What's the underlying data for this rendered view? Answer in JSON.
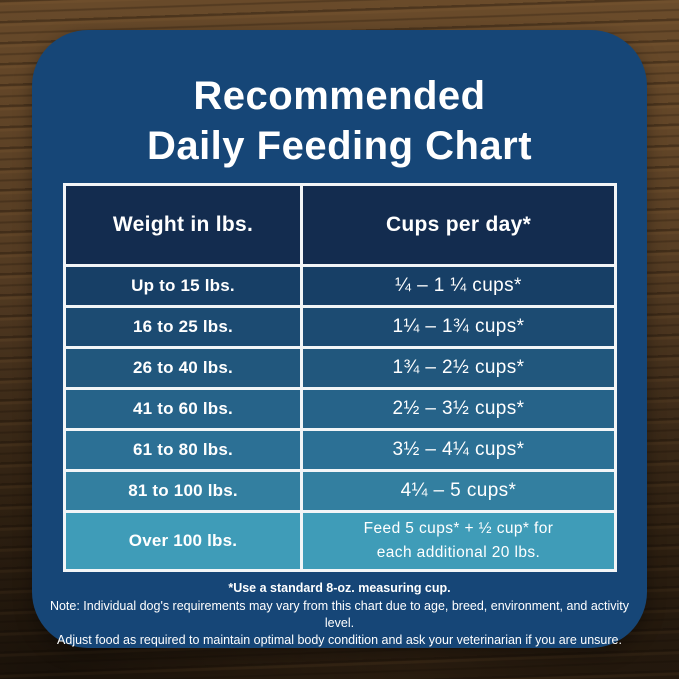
{
  "title": {
    "line1": "Recommended",
    "line2": "Daily Feeding Chart"
  },
  "colors": {
    "card_background": "#164677",
    "header_cell": "#132c4f",
    "table_border": "#f2f5f7",
    "text": "#ffffff",
    "wood_dark": "#2c1e10",
    "wood_light": "#6b4c2b"
  },
  "table": {
    "headers": {
      "weight": "Weight in lbs.",
      "cups": "Cups per day*"
    },
    "rows": [
      {
        "weight": "Up to 15 lbs.",
        "cups": "¼ – 1 ¼ cups*",
        "bg": "#173f66"
      },
      {
        "weight": "16 to 25 lbs.",
        "cups": "1¼ – 1¾ cups*",
        "bg": "#1c4b72"
      },
      {
        "weight": "26 to 40 lbs.",
        "cups": "1¾ – 2½ cups*",
        "bg": "#21577d"
      },
      {
        "weight": "41 to 60 lbs.",
        "cups": "2½ – 3½ cups*",
        "bg": "#266389"
      },
      {
        "weight": "61 to 80 lbs.",
        "cups": "3½ – 4¼ cups*",
        "bg": "#2c7095"
      },
      {
        "weight": "81 to 100 lbs.",
        "cups": "4¼ – 5 cups*",
        "bg": "#337fa0"
      },
      {
        "weight": "Over 100 lbs.",
        "cups": "Feed 5 cups* + ½ cup* for\neach additional 20 lbs.",
        "bg": "#3f9cb8"
      }
    ]
  },
  "footnotes": {
    "measuring_cup": "*Use a standard 8-oz. measuring cup.",
    "note_line1": "Note: Individual dog's requirements may vary from this chart due to age, breed, environment, and activity level.",
    "note_line2": "Adjust food as required to maintain optimal body condition and ask your veterinarian if you are unsure."
  },
  "chart_data": {
    "type": "table",
    "title": "Recommended Daily Feeding Chart",
    "columns": [
      "Weight in lbs.",
      "Cups per day*"
    ],
    "rows": [
      [
        "Up to 15 lbs.",
        "¼ – 1 ¼ cups*"
      ],
      [
        "16 to 25 lbs.",
        "1¼ – 1¾ cups*"
      ],
      [
        "26 to 40 lbs.",
        "1¾ – 2½ cups*"
      ],
      [
        "41 to 60 lbs.",
        "2½ – 3½ cups*"
      ],
      [
        "61 to 80 lbs.",
        "3½ – 4¼ cups*"
      ],
      [
        "81 to 100 lbs.",
        "4¼ – 5 cups*"
      ],
      [
        "Over 100 lbs.",
        "Feed 5 cups* + ½ cup* for each additional 20 lbs."
      ]
    ],
    "footnote": "*Use a standard 8-oz. measuring cup."
  }
}
